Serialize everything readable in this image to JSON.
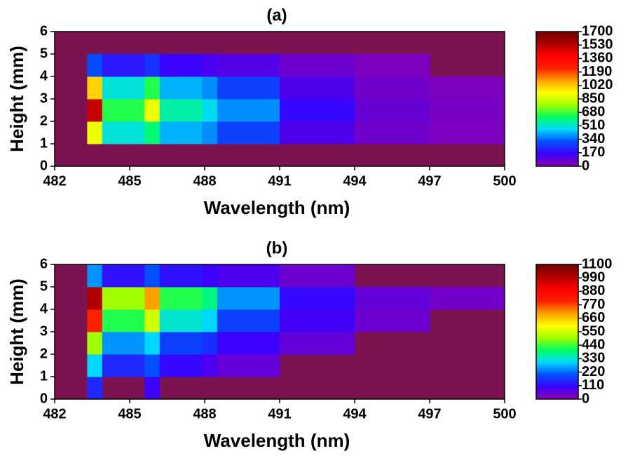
{
  "chart_data": [
    {
      "type": "heatmap",
      "title": "(a)",
      "x_label": "Wavelength (nm)",
      "y_label": "Height (mm)",
      "xlim": [
        482,
        500
      ],
      "xticks": [
        482,
        485,
        488,
        491,
        494,
        497,
        500
      ],
      "ylim": [
        0,
        6
      ],
      "yticks": [
        0,
        1,
        2,
        3,
        4,
        5,
        6
      ],
      "xbins": [
        482,
        483.3,
        483.9,
        485.6,
        486.2,
        487.9,
        488.5,
        491,
        494,
        497,
        500
      ],
      "ybins": [
        0,
        1,
        2,
        3,
        4,
        5,
        6
      ],
      "values": [
        [
          null,
          null,
          null,
          null,
          null,
          null,
          null,
          null,
          null,
          null
        ],
        [
          null,
          900,
          500,
          600,
          420,
          380,
          280,
          120,
          50,
          30
        ],
        [
          null,
          1500,
          650,
          900,
          550,
          480,
          380,
          170,
          70,
          40
        ],
        [
          null,
          1000,
          500,
          650,
          420,
          380,
          280,
          120,
          50,
          30
        ],
        [
          null,
          300,
          200,
          250,
          160,
          130,
          110,
          60,
          30,
          null
        ],
        [
          null,
          null,
          null,
          null,
          null,
          null,
          null,
          null,
          null,
          null
        ]
      ],
      "zlim": [
        0,
        1700
      ],
      "zticks": [
        0,
        170,
        340,
        510,
        680,
        850,
        1020,
        1190,
        1360,
        1530,
        1700
      ],
      "colorscale": [
        "#8b00b0",
        "#3c00ff",
        "#0050ff",
        "#00d8ff",
        "#00ff60",
        "#a0ff00",
        "#ffff00",
        "#ffa000",
        "#ff2000",
        "#ff0000",
        "#b00000",
        "#700000"
      ],
      "plot_background": "#7b1252"
    },
    {
      "type": "heatmap",
      "title": "(b)",
      "x_label": "Wavelength (nm)",
      "y_label": "Height (mm)",
      "xlim": [
        482,
        500
      ],
      "xticks": [
        482,
        485,
        488,
        491,
        494,
        497,
        500
      ],
      "ylim": [
        0,
        6
      ],
      "yticks": [
        0,
        1,
        2,
        3,
        4,
        5,
        6
      ],
      "xbins": [
        482,
        483.3,
        483.9,
        485.6,
        486.2,
        487.9,
        488.5,
        491,
        494,
        497,
        500
      ],
      "ybins": [
        0,
        1,
        2,
        3,
        4,
        5,
        6
      ],
      "values": [
        [
          null,
          150,
          null,
          100,
          null,
          null,
          null,
          null,
          null,
          null
        ],
        [
          null,
          300,
          150,
          200,
          110,
          80,
          50,
          null,
          null,
          null
        ],
        [
          null,
          500,
          250,
          300,
          180,
          160,
          100,
          50,
          null,
          null
        ],
        [
          null,
          800,
          420,
          550,
          330,
          300,
          180,
          90,
          40,
          null
        ],
        [
          null,
          1000,
          500,
          700,
          420,
          380,
          250,
          110,
          50,
          30
        ],
        [
          null,
          250,
          120,
          200,
          120,
          100,
          80,
          40,
          null,
          null
        ]
      ],
      "zlim": [
        0,
        1100
      ],
      "zticks": [
        0,
        110,
        220,
        330,
        440,
        550,
        660,
        770,
        880,
        990,
        1100
      ],
      "colorscale": [
        "#8b00b0",
        "#3c00ff",
        "#0050ff",
        "#00d8ff",
        "#00ff60",
        "#a0ff00",
        "#ffff00",
        "#ffa000",
        "#ff2000",
        "#ff0000",
        "#b00000",
        "#700000"
      ],
      "plot_background": "#7b1252"
    }
  ]
}
